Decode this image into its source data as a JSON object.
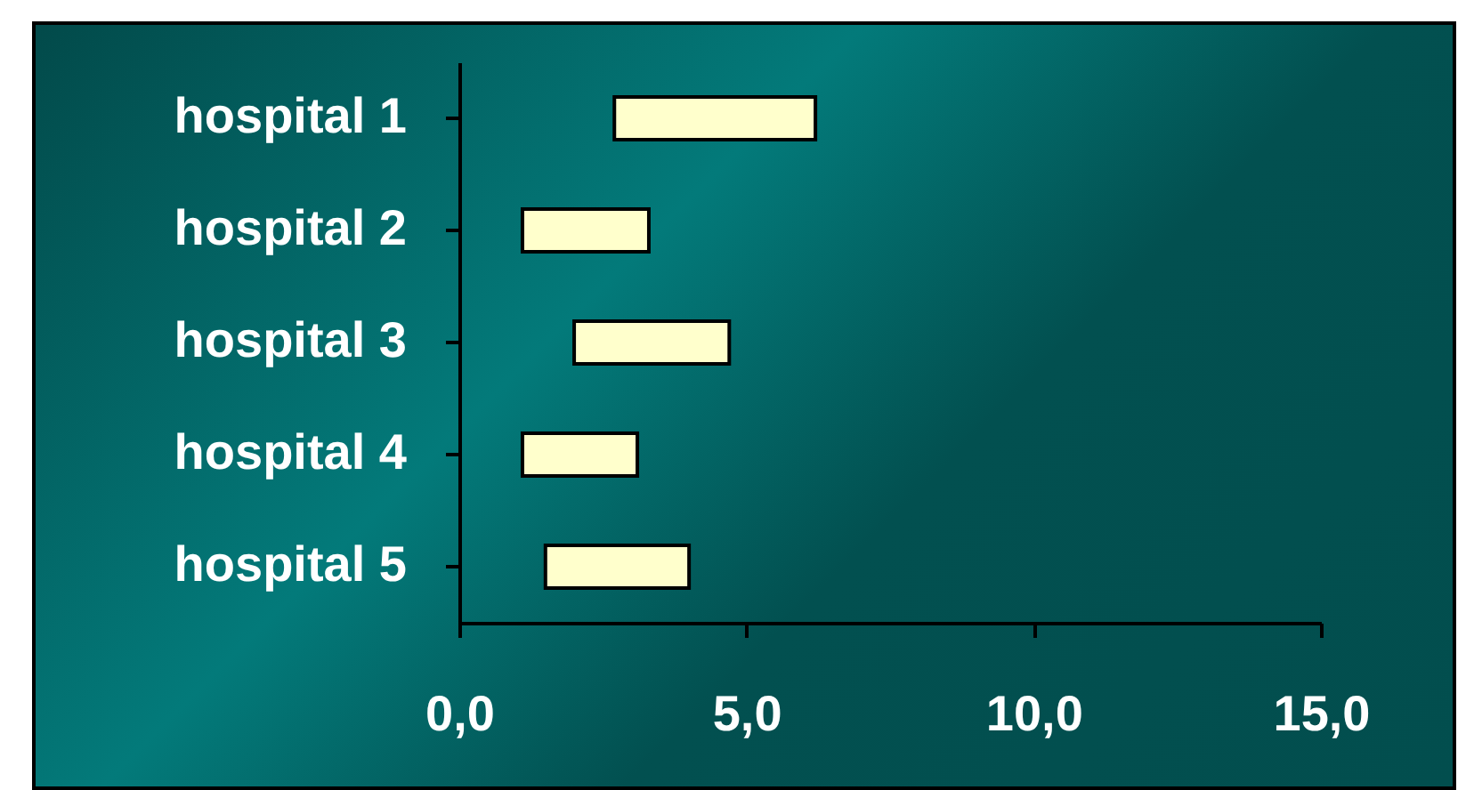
{
  "chart_data": {
    "type": "bar",
    "orientation": "horizontal",
    "categories": [
      "hospital 1",
      "hospital 2",
      "hospital 3",
      "hospital 4",
      "hospital 5"
    ],
    "base": [
      2.7,
      1.1,
      2.0,
      1.1,
      1.5
    ],
    "values": [
      3.5,
      2.2,
      2.7,
      2.0,
      2.5
    ],
    "color": "#ffffcc",
    "xlim": [
      0,
      15
    ],
    "xticks": [
      {
        "value": 0,
        "label": "0,0"
      },
      {
        "value": 5,
        "label": "5,0"
      },
      {
        "value": 10,
        "label": "10,0"
      },
      {
        "value": 15,
        "label": "15,0"
      }
    ],
    "grid": false
  }
}
